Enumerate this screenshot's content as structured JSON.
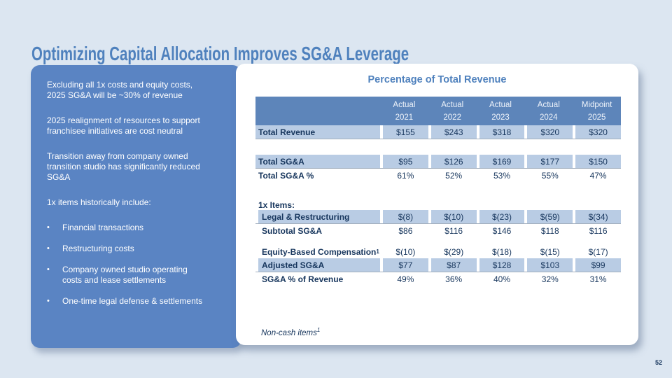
{
  "title": "Optimizing Capital Allocation Improves SG&A Leverage",
  "page_number": "52",
  "colors": {
    "background": "#dce6f1",
    "sidebar_blue": "#5a84c3",
    "table_header_blue": "#5d85ba",
    "row_highlight_blue": "#b9cce4",
    "navy_text": "#17365d",
    "title_blue": "#4f81bd"
  },
  "sidebar": {
    "paragraphs": [
      "Excluding all 1x costs and equity costs,\n2025 SG&A will be ~30% of revenue",
      "2025 realignment of resources to support\nfranchisee initiatives are cost neutral",
      "Transition away from company owned\ntransition studio has significantly reduced\nSG&A",
      "1x items historically include:"
    ],
    "bullets": [
      "Financial transactions",
      "Restructuring costs",
      "Company owned studio operating\ncosts and lease settlements",
      "One-time legal defense & settlements"
    ]
  },
  "panel": {
    "title": "Percentage of Total Revenue",
    "columns": [
      {
        "top": "Actual",
        "year": "2021"
      },
      {
        "top": "Actual",
        "year": "2022"
      },
      {
        "top": "Actual",
        "year": "2023"
      },
      {
        "top": "Actual",
        "year": "2024"
      },
      {
        "top": "Midpoint",
        "year": "2025"
      }
    ],
    "rows": [
      {
        "label": "Total Revenue",
        "values": [
          "$155",
          "$243",
          "$318",
          "$320",
          "$320"
        ],
        "highlight": true,
        "spacer_after": 22
      },
      {
        "label": "Total SG&A",
        "values": [
          "$95",
          "$126",
          "$169",
          "$177",
          "$150"
        ],
        "highlight": true
      },
      {
        "label": "Total SG&A %",
        "values": [
          "61%",
          "52%",
          "53%",
          "55%",
          "47%"
        ],
        "spacer_after": 21
      },
      {
        "label": "1x Items:",
        "section": true
      },
      {
        "label": "Legal & Restructuring",
        "values": [
          "$(8)",
          "$(10)",
          "$(23)",
          "$(59)",
          "$(34)"
        ],
        "highlight": true,
        "indent": true
      },
      {
        "label": "Subtotal SG&A",
        "values": [
          "$86",
          "$116",
          "$146",
          "$118",
          "$116"
        ],
        "indent": true,
        "spacer_after": 11
      },
      {
        "label": "Equity-Based Compensation",
        "sup": "1",
        "values": [
          "$(10)",
          "$(29)",
          "$(18)",
          "$(15)",
          "$(17)"
        ],
        "indent": true
      },
      {
        "label": "Adjusted SG&A",
        "values": [
          "$77",
          "$87",
          "$128",
          "$103",
          "$99"
        ],
        "highlight": true,
        "indent": true
      },
      {
        "label": "SG&A % of Revenue",
        "values": [
          "49%",
          "36%",
          "40%",
          "32%",
          "31%"
        ],
        "indent": true
      }
    ],
    "footnote": {
      "text": "Non-cash items",
      "sup": "1"
    }
  },
  "chart_data": {
    "type": "table",
    "title": "Percentage of Total Revenue",
    "categories": [
      "2021",
      "2022",
      "2023",
      "2024",
      "2025"
    ],
    "category_qualifiers": [
      "Actual",
      "Actual",
      "Actual",
      "Actual",
      "Midpoint"
    ],
    "series": [
      {
        "name": "Total Revenue",
        "values": [
          155,
          243,
          318,
          320,
          320
        ]
      },
      {
        "name": "Total SG&A",
        "values": [
          95,
          126,
          169,
          177,
          150
        ]
      },
      {
        "name": "Total SG&A %",
        "values": [
          "61%",
          "52%",
          "53%",
          "55%",
          "47%"
        ]
      },
      {
        "name": "Legal & Restructuring",
        "values": [
          -8,
          -10,
          -23,
          -59,
          -34
        ]
      },
      {
        "name": "Subtotal SG&A",
        "values": [
          86,
          116,
          146,
          118,
          116
        ]
      },
      {
        "name": "Equity-Based Compensation",
        "values": [
          -10,
          -29,
          -18,
          -15,
          -17
        ]
      },
      {
        "name": "Adjusted SG&A",
        "values": [
          77,
          87,
          128,
          103,
          99
        ]
      },
      {
        "name": "SG&A % of Revenue",
        "values": [
          "49%",
          "36%",
          "40%",
          "32%",
          "31%"
        ]
      }
    ]
  }
}
